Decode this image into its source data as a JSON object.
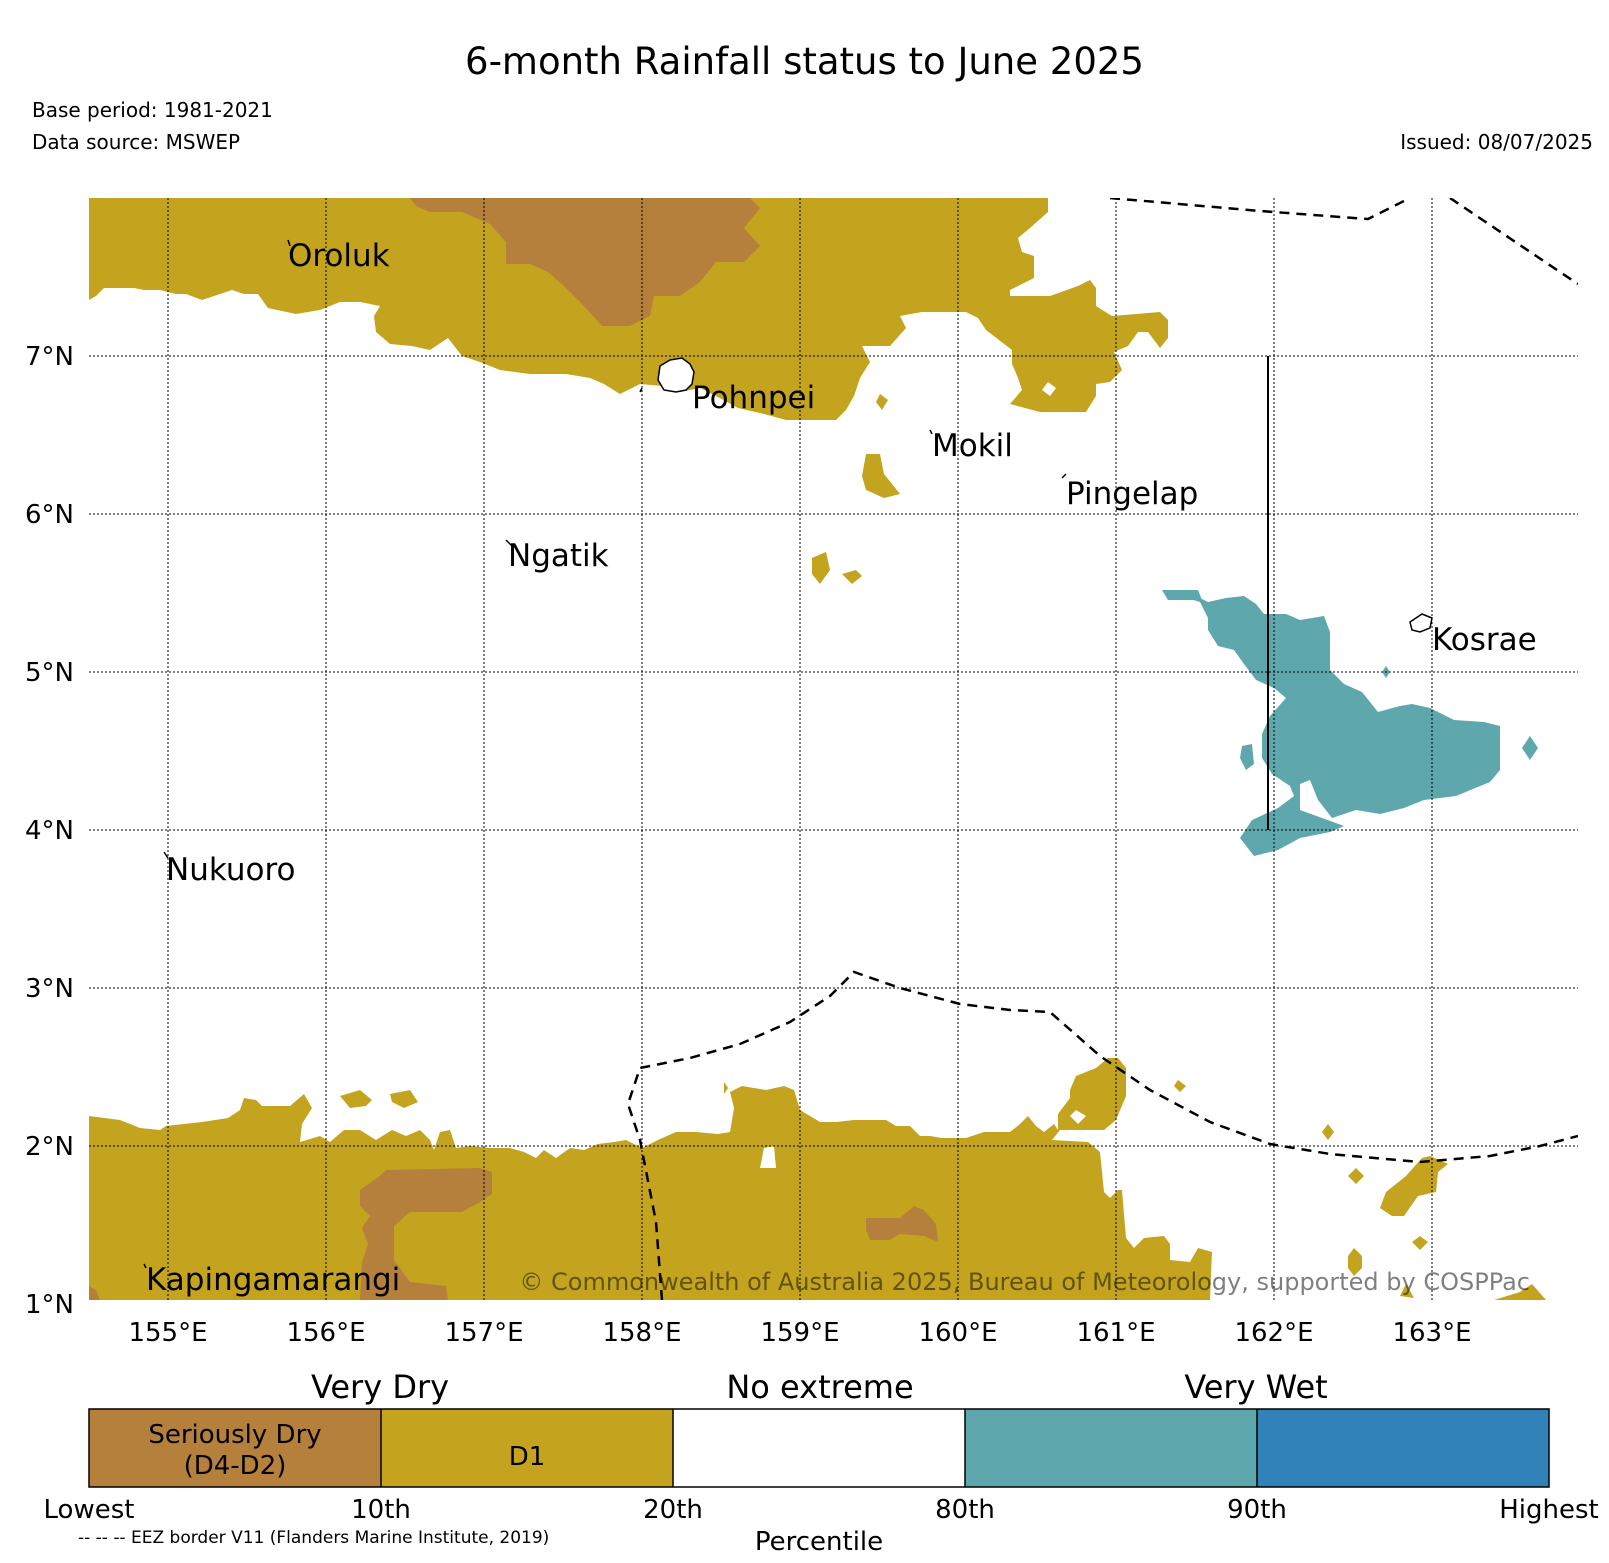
{
  "header": {
    "title": "6-month Rainfall status to June 2025",
    "base_period": "Base period: 1981-2021",
    "data_source": "Data source: MSWEP",
    "issued": "Issued: 08/07/2025"
  },
  "map": {
    "lat_labels": [
      "7°N",
      "6°N",
      "5°N",
      "4°N",
      "3°N",
      "2°N",
      "1°N"
    ],
    "lon_labels": [
      "155°E",
      "156°E",
      "157°E",
      "158°E",
      "159°E",
      "160°E",
      "161°E",
      "162°E",
      "163°E"
    ],
    "places": [
      "Oroluk",
      "Pohnpei",
      "Mokil",
      "Pingelap",
      "Ngatik",
      "Kosrae",
      "Nukuoro",
      "Kapingamarangi"
    ],
    "copyright": "© Commonwealth of Australia 2025, Bureau of Meteorology, supported by COSPPac",
    "colors": {
      "seriously_dry": "#b5803c",
      "d1": "#c4a41e",
      "no_extreme": "#ffffff",
      "wet": "#5ea8ad",
      "very_wet": "#3182b8"
    }
  },
  "legend": {
    "groups": [
      "Very Dry",
      "No extreme",
      "Very Wet"
    ],
    "boxes": [
      "Seriously Dry",
      "(D4-D2)",
      "D1"
    ],
    "ticks": [
      "Lowest",
      "10th",
      "20th",
      "80th",
      "90th",
      "Highest"
    ],
    "axis_label": "Percentile",
    "eez_note": "-- -- -- EEZ border V11 (Flanders Marine Institute, 2019)"
  }
}
